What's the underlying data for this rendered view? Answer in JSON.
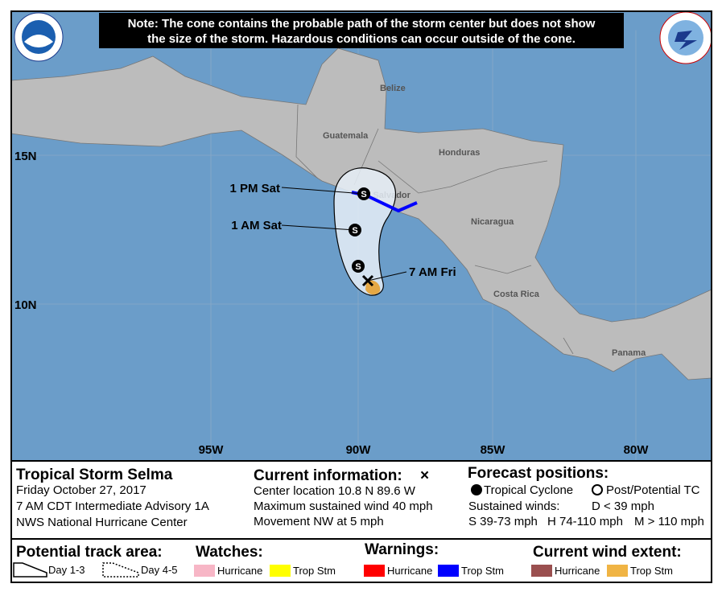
{
  "note": [
    "Note: The cone contains the probable path of the storm center but does not show",
    "the size of the storm. Hazardous conditions can occur outside of the cone."
  ],
  "map": {
    "countries": [
      "Belize",
      "Guatemala",
      "Honduras",
      "El Salvador",
      "Nicaragua",
      "Costa Rica",
      "Panama"
    ],
    "lat_labels": [
      "15N",
      "10N"
    ],
    "lon_labels": [
      "95W",
      "90W",
      "85W",
      "80W"
    ],
    "track_symbols": [
      "S",
      "S",
      "S"
    ],
    "time_labels": [
      "1 PM Sat",
      "1 AM Sat",
      "7 AM Fri"
    ]
  },
  "storm": {
    "title": "Tropical Storm Selma",
    "lines": [
      "Friday October 27, 2017",
      "7 AM CDT Intermediate Advisory 1A",
      "NWS National Hurricane Center"
    ]
  },
  "current": {
    "title": "Current information:",
    "symbol": "×",
    "lines": [
      "Center location 10.8 N 89.6 W",
      "Maximum sustained wind 40 mph",
      "Movement NW at 5 mph"
    ]
  },
  "forecast": {
    "title": "Forecast positions:",
    "tropical": "Tropical Cyclone",
    "post": "Post/Potential TC",
    "winds": "Sustained winds:",
    "d": "D < 39 mph",
    "s": "S 39-73 mph",
    "h": "H 74-110 mph",
    "m": "M > 110 mph"
  },
  "legend": {
    "track": {
      "title": "Potential track area:",
      "day13": "Day 1-3",
      "day45": "Day 4-5"
    },
    "watches": {
      "title": "Watches:",
      "hurricane": "Hurricane",
      "trop": "Trop Stm"
    },
    "warnings": {
      "title": "Warnings:",
      "hurricane": "Hurricane",
      "trop": "Trop Stm"
    },
    "wind": {
      "title": "Current wind extent:",
      "hurricane": "Hurricane",
      "trop": "Trop Stm"
    }
  }
}
